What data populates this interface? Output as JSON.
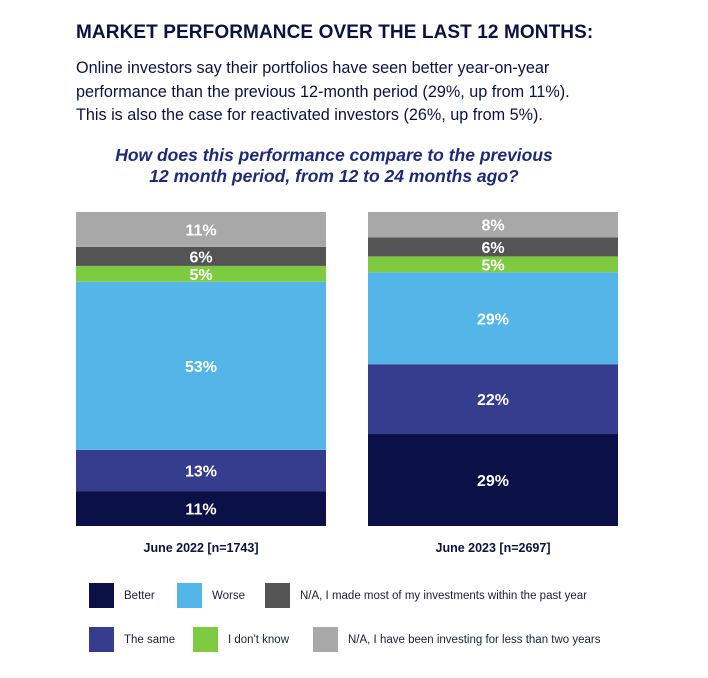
{
  "header": {
    "title": "MARKET PERFORMANCE OVER THE LAST 12 MONTHS:",
    "intro_line1": "Online investors say their portfolios have seen better year-on-year",
    "intro_line2": "performance than the previous 12-month period (29%, up from 11%).",
    "intro_line3": "This is also the case for reactivated investors (26%, up from 5%)."
  },
  "question": {
    "line1": "How does this performance compare to the previous",
    "line2": "12 month period, from 12 to 24 months ago?"
  },
  "colors": {
    "better": "#0b1047",
    "the_same": "#363c8e",
    "worse": "#54b5e8",
    "dont_know": "#7ecb41",
    "na_recent": "#545454",
    "na_new": "#a8a8a8"
  },
  "chart_data": {
    "type": "bar",
    "stacked": true,
    "percent": true,
    "categories": [
      "June 2022 [n=1743]",
      "June 2023 [n=2697]"
    ],
    "series": [
      {
        "name": "Better",
        "values": [
          11,
          29
        ],
        "color": "#0b1047"
      },
      {
        "name": "The same",
        "values": [
          13,
          22
        ],
        "color": "#363c8e"
      },
      {
        "name": "Worse",
        "values": [
          53,
          29
        ],
        "color": "#54b5e8"
      },
      {
        "name": "I don't know",
        "values": [
          5,
          5
        ],
        "color": "#7ecb41"
      },
      {
        "name": "N/A, I made most of my investments within the past year",
        "values": [
          6,
          6
        ],
        "color": "#545454"
      },
      {
        "name": "N/A, I have been investing for less than two years",
        "values": [
          11,
          8
        ],
        "color": "#a8a8a8"
      }
    ],
    "legend_placement": "bottom",
    "grid": false
  },
  "legend": [
    {
      "label": "Better",
      "color": "#0b1047"
    },
    {
      "label": "Worse",
      "color": "#54b5e8"
    },
    {
      "label": "N/A, I made most of my investments within the past year",
      "color": "#545454"
    },
    {
      "label": "The same",
      "color": "#363c8e"
    },
    {
      "label": "I don't know",
      "color": "#7ecb41"
    },
    {
      "label": "N/A, I have been investing for less than two years",
      "color": "#a8a8a8"
    }
  ]
}
